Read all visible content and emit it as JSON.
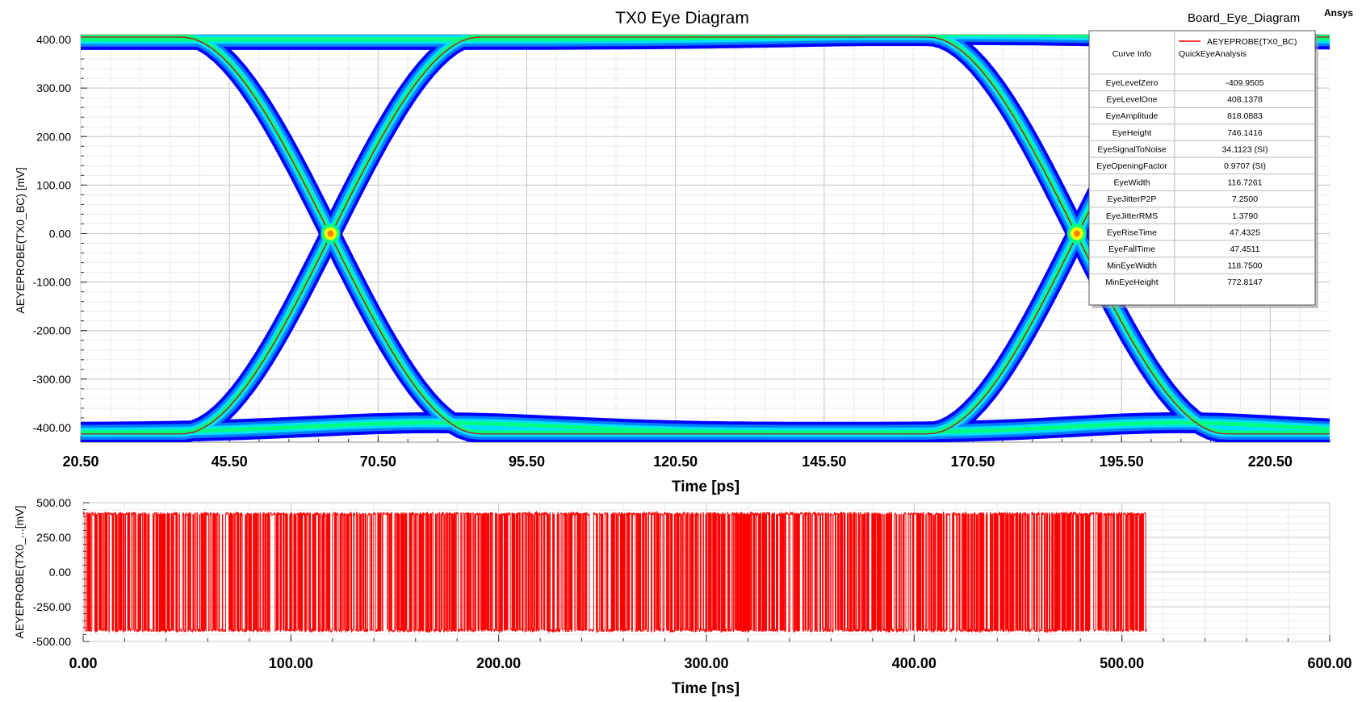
{
  "brand": "Ansys",
  "plot_name": "Board_Eye_Diagram",
  "curve_info": {
    "header_label": "Curve Info",
    "curve_name": "AEYEPROBE(TX0_BC)",
    "curve_source": "QuickEyeAnalysis",
    "curve_color": "#ff0000",
    "rows": [
      {
        "name": "EyeLevelZero",
        "value": "-409.9505"
      },
      {
        "name": "EyeLevelOne",
        "value": "408.1378"
      },
      {
        "name": "EyeAmplitude",
        "value": "818.0883"
      },
      {
        "name": "EyeHeight",
        "value": "746.1416"
      },
      {
        "name": "EyeSignalToNoise",
        "value": "34.1123 (SI)"
      },
      {
        "name": "EyeOpeningFactor",
        "value": "0.9707 (SI)"
      },
      {
        "name": "EyeWidth",
        "value": "116.7261"
      },
      {
        "name": "EyeJitterP2P",
        "value": "7.2500"
      },
      {
        "name": "EyeJitterRMS",
        "value": "1.3790"
      },
      {
        "name": "EyeRiseTime",
        "value": "47.4325"
      },
      {
        "name": "EyeFallTime",
        "value": "47.4511"
      },
      {
        "name": "MinEyeWidth",
        "value": "118.7500"
      },
      {
        "name": "MinEyeHeight",
        "value": "772.8147"
      }
    ]
  },
  "chart_data": [
    {
      "type": "eye-diagram",
      "title": "TX0 Eye Diagram",
      "xlabel": "Time [ps]",
      "ylabel": "AEYEPROBE(TX0_BC) [mV]",
      "xlim": [
        20.5,
        230.5
      ],
      "ylim": [
        -430,
        410
      ],
      "grid": true,
      "x_ticks": [
        "20.50",
        "45.50",
        "70.50",
        "95.50",
        "120.50",
        "145.50",
        "170.50",
        "195.50",
        "220.50"
      ],
      "y_ticks": [
        "400.00",
        "300.00",
        "200.00",
        "100.00",
        "0.00",
        "-100.00",
        "-200.00",
        "-300.00",
        "-400.00"
      ],
      "crossings": [
        {
          "x": 62.5,
          "y": 0
        },
        {
          "x": 188,
          "y": 0
        }
      ],
      "eye_level_one": 408.1378,
      "eye_level_zero": -409.9505,
      "density_colors": [
        "#0000ff",
        "#0080ff",
        "#00e0ff",
        "#00ff80",
        "#ffff00",
        "#ff8000"
      ]
    },
    {
      "type": "line",
      "xlabel": "Time [ns]",
      "ylabel": "AEYEPROBE(TX0_...[mV]",
      "xlim": [
        0,
        600
      ],
      "ylim": [
        -500,
        500
      ],
      "grid": true,
      "x_ticks": [
        "0.00",
        "100.00",
        "200.00",
        "300.00",
        "400.00",
        "500.00",
        "600.00"
      ],
      "y_ticks": [
        "500.00",
        "250.00",
        "0.00",
        "-250.00",
        "-500.00"
      ],
      "series": [
        {
          "name": "AEYEPROBE(TX0_BC)",
          "color": "#ff0000",
          "signal": "NRZ random bit sequence",
          "x_range": [
            0,
            512
          ],
          "high": 420,
          "low": -420
        }
      ]
    }
  ]
}
